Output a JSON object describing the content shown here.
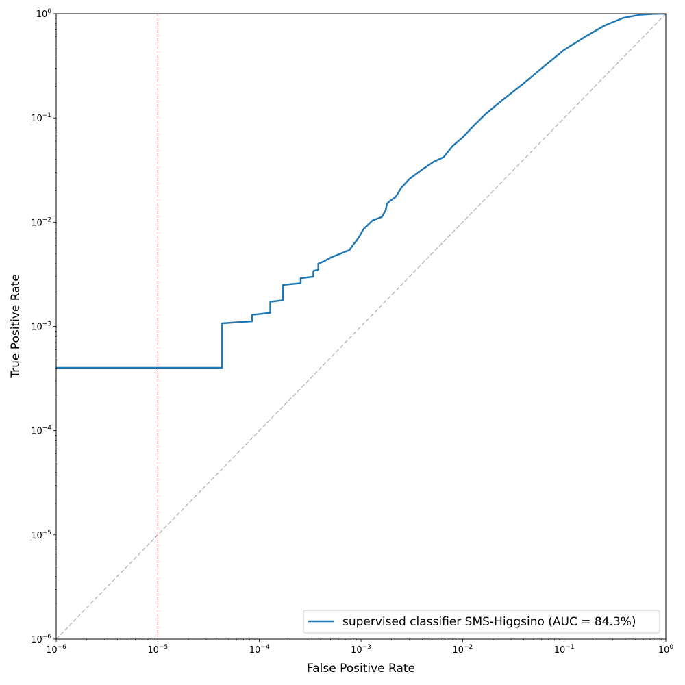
{
  "chart_data": {
    "type": "line",
    "xlabel": "False Positive Rate",
    "ylabel": "True Positive Rate",
    "xscale": "log",
    "yscale": "log",
    "xlim": [
      1e-06,
      1
    ],
    "ylim": [
      1e-06,
      1
    ],
    "xticks": [
      {
        "base": "10",
        "exp": "−6"
      },
      {
        "base": "10",
        "exp": "−5"
      },
      {
        "base": "10",
        "exp": "−4"
      },
      {
        "base": "10",
        "exp": "−3"
      },
      {
        "base": "10",
        "exp": "−2"
      },
      {
        "base": "10",
        "exp": "−1"
      },
      {
        "base": "10",
        "exp": "0"
      }
    ],
    "yticks": [
      {
        "base": "10",
        "exp": "−6"
      },
      {
        "base": "10",
        "exp": "−5"
      },
      {
        "base": "10",
        "exp": "−4"
      },
      {
        "base": "10",
        "exp": "−3"
      },
      {
        "base": "10",
        "exp": "−2"
      },
      {
        "base": "10",
        "exp": "−1"
      },
      {
        "base": "10",
        "exp": "0"
      }
    ],
    "grid": false,
    "legend_position": "lower-right",
    "series": [
      {
        "name": "supervised classifier SMS-Higgsino (AUC = 84.3%)",
        "color": "#1f77b4",
        "style": "solid",
        "x": [
          1e-06,
          4.3e-05,
          4.3e-05,
          8.5e-05,
          8.5e-05,
          0.000128,
          0.000128,
          0.00017,
          0.00017,
          0.000255,
          0.000255,
          0.00034,
          0.00034,
          0.00038,
          0.00038,
          0.00043,
          0.00051,
          0.0006,
          0.00077,
          0.00085,
          0.0009,
          0.00098,
          0.00105,
          0.00113,
          0.0013,
          0.0016,
          0.00175,
          0.0018,
          0.0019,
          0.0022,
          0.0025,
          0.003,
          0.004,
          0.0052,
          0.0065,
          0.008,
          0.01,
          0.013,
          0.017,
          0.025,
          0.04,
          0.06,
          0.1,
          0.16,
          0.25,
          0.38,
          0.55,
          0.75,
          1.0
        ],
        "y": [
          0.0004,
          0.0004,
          0.00107,
          0.00112,
          0.00129,
          0.00135,
          0.00172,
          0.00178,
          0.0025,
          0.0026,
          0.0029,
          0.003,
          0.0034,
          0.0035,
          0.004,
          0.0042,
          0.0046,
          0.0049,
          0.0054,
          0.0062,
          0.0066,
          0.0075,
          0.0085,
          0.0091,
          0.0104,
          0.0112,
          0.013,
          0.015,
          0.0158,
          0.0175,
          0.0215,
          0.026,
          0.032,
          0.038,
          0.042,
          0.054,
          0.065,
          0.085,
          0.11,
          0.15,
          0.215,
          0.3,
          0.45,
          0.6,
          0.77,
          0.91,
          0.975,
          0.995,
          1.0
        ]
      },
      {
        "name": "",
        "color": "#bbbbbb",
        "style": "dashed",
        "x": [
          1e-06,
          1
        ],
        "y": [
          1e-06,
          1
        ]
      }
    ],
    "vlines": [
      {
        "x": 1e-05,
        "color": "#d62728",
        "style": "dashed"
      }
    ]
  }
}
